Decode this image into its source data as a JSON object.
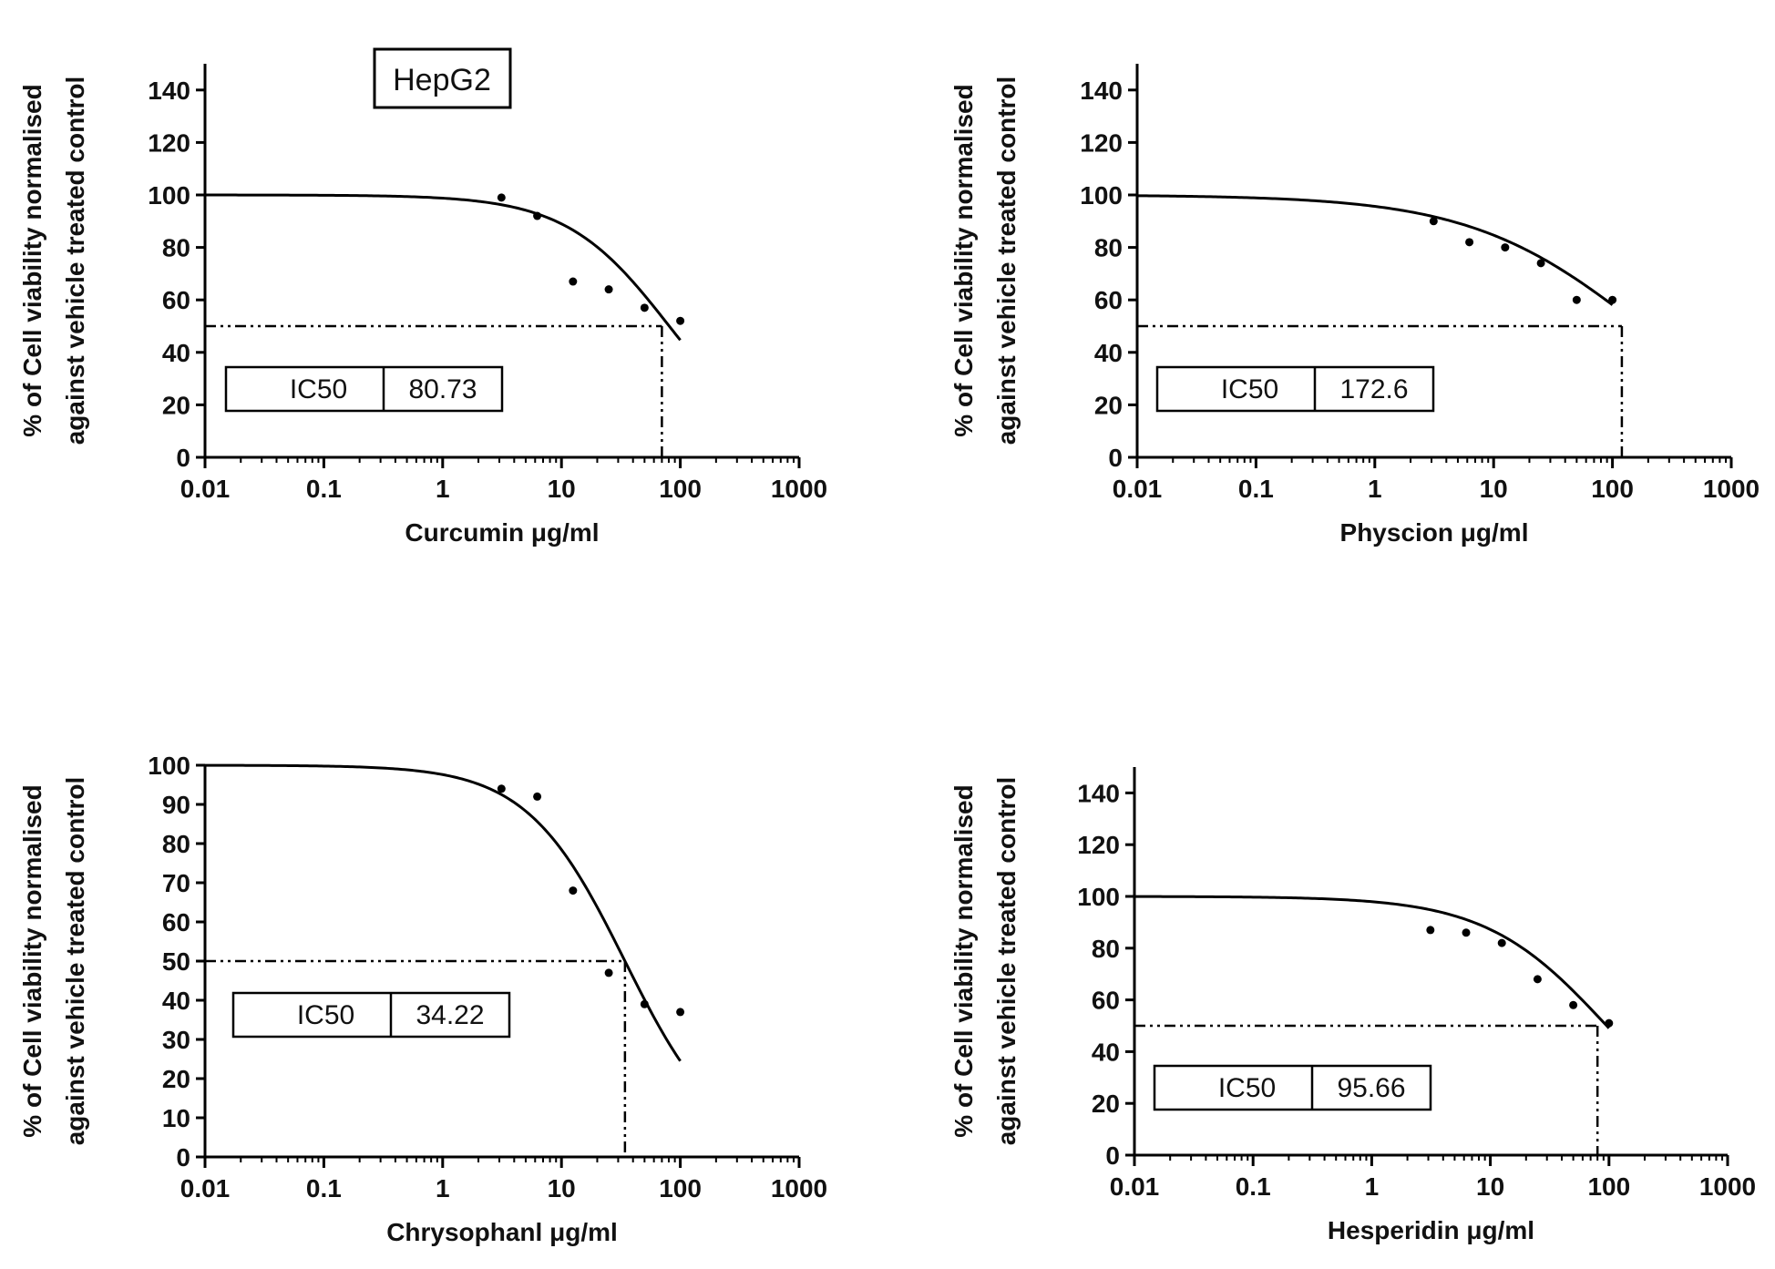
{
  "figure": {
    "cell_line_label": "HepG2"
  },
  "chart_data": [
    {
      "type": "scatter",
      "fit": "dose-response sigmoid (4PL)",
      "title": "",
      "xlabel": "Curcumin μg/ml",
      "ylabel_line1": "% of Cell viability normalised",
      "ylabel_line2": "against vehicle treated control",
      "xscale": "log",
      "xlim": [
        0.01,
        1000
      ],
      "ylim": [
        0,
        150
      ],
      "x_ticks": [
        0.01,
        0.1,
        1,
        10,
        100,
        1000
      ],
      "x_tick_labels": [
        "0.01",
        "0.1",
        "1",
        "10",
        "100",
        "1000"
      ],
      "y_ticks": [
        0,
        20,
        40,
        60,
        80,
        100,
        120,
        140
      ],
      "y_tick_labels": [
        "0",
        "20",
        "40",
        "60",
        "80",
        "100",
        "120",
        "140"
      ],
      "x": [
        3.125,
        6.25,
        12.5,
        25,
        50,
        100
      ],
      "y": [
        99,
        92,
        67,
        64,
        57,
        52
      ],
      "curve": {
        "top": 100,
        "ic50": 80.73,
        "hill": 1.0,
        "x_range": [
          0.01,
          100
        ]
      },
      "ic50_line_y": 50,
      "ic50_line_x": 70,
      "ic50_label": "IC50",
      "ic50_value": "80.73"
    },
    {
      "type": "scatter",
      "fit": "dose-response sigmoid (4PL)",
      "title": "",
      "xlabel": "Physcion μg/ml",
      "ylabel_line1": "% of Cell viability normalised",
      "ylabel_line2": "against vehicle treated control",
      "xscale": "log",
      "xlim": [
        0.01,
        1000
      ],
      "ylim": [
        0,
        150
      ],
      "x_ticks": [
        0.01,
        0.1,
        1,
        10,
        100,
        1000
      ],
      "x_tick_labels": [
        "0.01",
        "0.1",
        "1",
        "10",
        "100",
        "1000"
      ],
      "y_ticks": [
        0,
        20,
        40,
        60,
        80,
        100,
        120,
        140
      ],
      "y_tick_labels": [
        "0",
        "20",
        "40",
        "60",
        "80",
        "100",
        "120",
        "140"
      ],
      "x": [
        3.125,
        6.25,
        12.5,
        25,
        50,
        100
      ],
      "y": [
        90,
        82,
        80,
        74,
        60,
        60
      ],
      "curve": {
        "top": 100,
        "ic50": 172.6,
        "hill": 0.6,
        "x_range": [
          0.01,
          100
        ]
      },
      "ic50_line_y": 50,
      "ic50_line_x": 120,
      "ic50_label": "IC50",
      "ic50_value": "172.6"
    },
    {
      "type": "scatter",
      "fit": "dose-response sigmoid (4PL)",
      "title": "",
      "xlabel": "Chrysophanl μg/ml",
      "ylabel_line1": "% of Cell viability normalised",
      "ylabel_line2": "against vehicle treated control",
      "xscale": "log",
      "xlim": [
        0.01,
        1000
      ],
      "ylim": [
        0,
        100
      ],
      "x_ticks": [
        0.01,
        0.1,
        1,
        10,
        100,
        1000
      ],
      "x_tick_labels": [
        "0.01",
        "0.1",
        "1",
        "10",
        "100",
        "1000"
      ],
      "y_ticks": [
        0,
        10,
        20,
        30,
        40,
        50,
        60,
        70,
        80,
        90,
        100
      ],
      "y_tick_labels": [
        "0",
        "10",
        "20",
        "30",
        "40",
        "50",
        "60",
        "70",
        "80",
        "90",
        "100"
      ],
      "x": [
        3.125,
        6.25,
        12.5,
        25,
        50,
        100
      ],
      "y": [
        94,
        92,
        68,
        47,
        39,
        37
      ],
      "curve": {
        "top": 100,
        "ic50": 34.22,
        "hill": 1.05,
        "x_range": [
          0.01,
          100
        ]
      },
      "ic50_line_y": 50,
      "ic50_line_x": 34.22,
      "ic50_label": "IC50",
      "ic50_value": "34.22"
    },
    {
      "type": "scatter",
      "fit": "dose-response sigmoid (4PL)",
      "title": "",
      "xlabel": "Hesperidin μg/ml",
      "ylabel_line1": "% of Cell viability normalised",
      "ylabel_line2": "against vehicle treated control",
      "xscale": "log",
      "xlim": [
        0.01,
        1000
      ],
      "ylim": [
        0,
        150
      ],
      "x_ticks": [
        0.01,
        0.1,
        1,
        10,
        100,
        1000
      ],
      "x_tick_labels": [
        "0.01",
        "0.1",
        "1",
        "10",
        "100",
        "1000"
      ],
      "y_ticks": [
        0,
        20,
        40,
        60,
        80,
        100,
        120,
        140
      ],
      "y_tick_labels": [
        "0",
        "20",
        "40",
        "60",
        "80",
        "100",
        "120",
        "140"
      ],
      "x": [
        3.125,
        6.25,
        12.5,
        25,
        50,
        100
      ],
      "y": [
        87,
        86,
        82,
        68,
        58,
        51
      ],
      "curve": {
        "top": 100,
        "ic50": 95.66,
        "hill": 0.85,
        "x_range": [
          0.01,
          100
        ]
      },
      "ic50_line_y": 50,
      "ic50_line_x": 80,
      "ic50_label": "IC50",
      "ic50_value": "95.66"
    }
  ]
}
